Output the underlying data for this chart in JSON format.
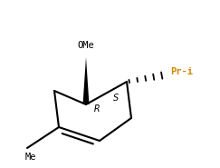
{
  "background": "#ffffff",
  "ring_color": "#000000",
  "label_color": "#000000",
  "oMe_label": "OMe",
  "pri_label": "Pr-i",
  "me_label": "Me",
  "r_label": "R",
  "s_label": "S",
  "oMe_color": "#000000",
  "pri_color": "#cc8800",
  "me_color": "#000000",
  "figsize": [
    2.43,
    1.85
  ],
  "dpi": 100,
  "lw": 1.5
}
